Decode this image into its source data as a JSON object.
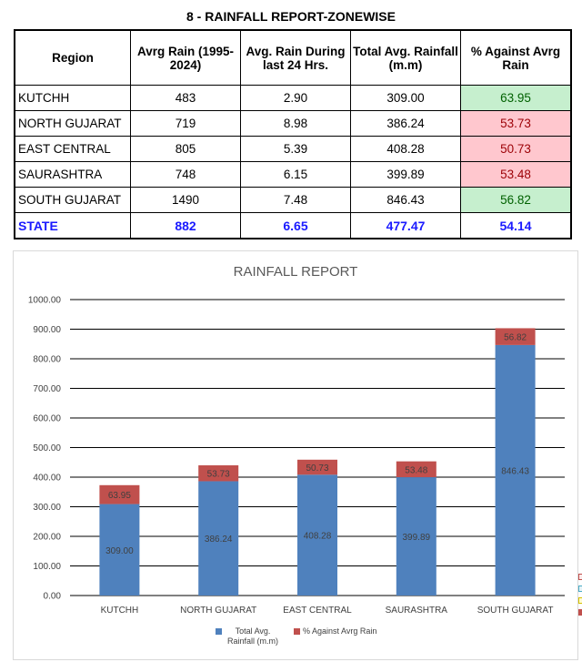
{
  "report_title": "8 - RAINFALL REPORT-ZONEWISE",
  "table": {
    "headers": [
      "Region",
      "Avrg Rain (1995-2024)",
      "Avg. Rain During last 24 Hrs.",
      "Total Avg. Rainfall (m.m)",
      "% Against Avrg Rain"
    ],
    "rows": [
      {
        "region": "KUTCHH",
        "avg": "483",
        "last24": "2.90",
        "total": "309.00",
        "pct": "63.95",
        "status": "good"
      },
      {
        "region": "NORTH GUJARAT",
        "avg": "719",
        "last24": "8.98",
        "total": "386.24",
        "pct": "53.73",
        "status": "bad"
      },
      {
        "region": "EAST CENTRAL",
        "avg": "805",
        "last24": "5.39",
        "total": "408.28",
        "pct": "50.73",
        "status": "bad"
      },
      {
        "region": "SAURASHTRA",
        "avg": "748",
        "last24": "6.15",
        "total": "399.89",
        "pct": "53.48",
        "status": "bad"
      },
      {
        "region": "SOUTH GUJARAT",
        "avg": "1490",
        "last24": "7.48",
        "total": "846.43",
        "pct": "56.82",
        "status": "good"
      }
    ],
    "state": {
      "region": "STATE",
      "avg": "882",
      "last24": "6.65",
      "total": "477.47",
      "pct": "54.14"
    }
  },
  "colors": {
    "total": "#4f81bd",
    "pct": "#c0504d",
    "good_bg": "#c6efce",
    "bad_bg": "#ffc7ce"
  },
  "chart_data": {
    "type": "bar",
    "stacked": true,
    "title": "RAINFALL REPORT",
    "categories": [
      "KUTCHH",
      "NORTH GUJARAT",
      "EAST CENTRAL",
      "SAURASHTRA",
      "SOUTH GUJARAT"
    ],
    "series": [
      {
        "name": "Total Avg. Rainfall (m.m)",
        "values": [
          309.0,
          386.24,
          408.28,
          399.89,
          846.43
        ],
        "labels": [
          "309.00",
          "386.24",
          "408.28",
          "399.89",
          "846.43"
        ]
      },
      {
        "name": "% Against Avrg Rain",
        "values": [
          63.95,
          53.73,
          50.73,
          53.48,
          56.82
        ],
        "labels": [
          "63.95",
          "53.73",
          "50.73",
          "53.48",
          "56.82"
        ]
      }
    ],
    "yticks": [
      "0.00",
      "100.00",
      "200.00",
      "300.00",
      "400.00",
      "500.00",
      "600.00",
      "700.00",
      "800.00",
      "900.00",
      "1000.00"
    ],
    "ylim": [
      0,
      1000
    ],
    "grid": true,
    "legend_position": "bottom"
  }
}
